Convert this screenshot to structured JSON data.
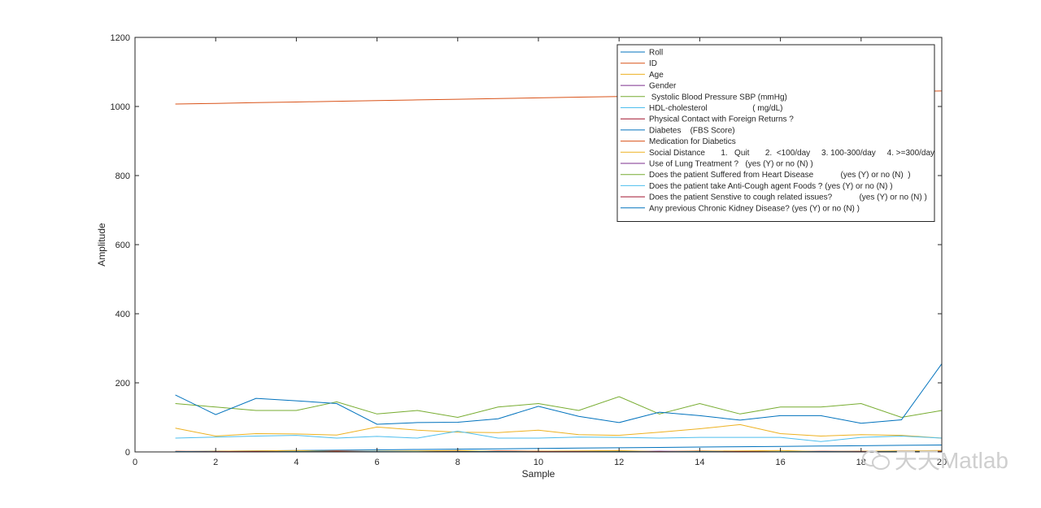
{
  "chart_data": {
    "type": "line",
    "title": "",
    "xlabel": "Sample",
    "ylabel": "Amplitude",
    "xlim": [
      0,
      20
    ],
    "ylim": [
      0,
      1200
    ],
    "xticks": [
      0,
      2,
      4,
      6,
      8,
      10,
      12,
      14,
      16,
      18,
      20
    ],
    "yticks": [
      0,
      200,
      400,
      600,
      800,
      1000,
      1200
    ],
    "grid": false,
    "legend_position": "top-right",
    "x": [
      1,
      2,
      3,
      4,
      5,
      6,
      7,
      8,
      9,
      10,
      11,
      12,
      13,
      14,
      15,
      16,
      17,
      18,
      19,
      20
    ],
    "series": [
      {
        "name": "Roll",
        "color": "#0072BD",
        "values": [
          1,
          2,
          3,
          4,
          5,
          6,
          7,
          8,
          9,
          10,
          11,
          12,
          13,
          14,
          15,
          16,
          17,
          18,
          19,
          20
        ]
      },
      {
        "name": "ID",
        "color": "#D95319",
        "values": [
          1007,
          1009,
          1011,
          1013,
          1015,
          1017,
          1019,
          1021,
          1023,
          1025,
          1027,
          1029,
          1031,
          1033,
          1035,
          1037,
          1039,
          1041,
          1043,
          1045
        ]
      },
      {
        "name": "Age",
        "color": "#EDB120",
        "values": [
          69,
          46,
          53,
          52,
          49,
          72,
          63,
          57,
          56,
          63,
          50,
          48,
          57,
          67,
          79,
          53,
          46,
          50,
          48,
          40
        ]
      },
      {
        "name": "Gender",
        "color": "#7E2F8E",
        "values": [
          1,
          1,
          2,
          1,
          2,
          1,
          1,
          2,
          1,
          2,
          1,
          1,
          2,
          1,
          2,
          1,
          1,
          2,
          1,
          2
        ]
      },
      {
        "name": " Systolic Blood Pressure SBP (mmHg)",
        "color": "#77AC30",
        "values": [
          140,
          130,
          120,
          120,
          145,
          110,
          120,
          100,
          130,
          140,
          120,
          160,
          110,
          140,
          110,
          130,
          130,
          140,
          100,
          120
        ]
      },
      {
        "name": "HDL-cholesterol                    ( mg/dL)",
        "color": "#4DBEEE",
        "values": [
          40,
          43,
          46,
          48,
          40,
          45,
          40,
          60,
          40,
          40,
          43,
          42,
          40,
          42,
          42,
          42,
          30,
          42,
          46,
          40
        ]
      },
      {
        "name": "Physical Contact with Foreign Returns ?",
        "color": "#A2142F",
        "values": [
          1,
          1,
          0,
          1,
          0,
          1,
          0,
          0,
          1,
          0,
          1,
          0,
          0,
          1,
          0,
          1,
          0,
          0,
          1,
          0
        ]
      },
      {
        "name": "Diabetes    (FBS Score)",
        "color": "#0072BD",
        "values": [
          165,
          108,
          155,
          148,
          140,
          80,
          85,
          86,
          96,
          132,
          103,
          85,
          115,
          105,
          92,
          105,
          105,
          83,
          93,
          255
        ]
      },
      {
        "name": "Medication for Diabetics",
        "color": "#D95319",
        "values": [
          2,
          1,
          2,
          1,
          3,
          1,
          2,
          1,
          3,
          2,
          1,
          2,
          1,
          3,
          2,
          1,
          2,
          1,
          3,
          2
        ]
      },
      {
        "name": "Social Distance       1.   Quit       2.  <100/day     3. 100-300/day     4. >=300/day",
        "color": "#EDB120",
        "values": [
          1,
          2,
          3,
          4,
          1,
          2,
          3,
          4,
          1,
          2,
          3,
          4,
          1,
          2,
          3,
          4,
          1,
          2,
          3,
          4
        ]
      },
      {
        "name": "Use of Lung Treatment ?   (yes (Y) or no (N) )",
        "color": "#7E2F8E",
        "values": [
          1,
          0,
          1,
          0,
          0,
          1,
          0,
          1,
          1,
          0,
          0,
          1,
          0,
          1,
          0,
          0,
          1,
          0,
          1,
          0
        ]
      },
      {
        "name": "Does the patient Suffered from Heart Disease            (yes (Y) or no (N)  )",
        "color": "#77AC30",
        "values": [
          0,
          1,
          0,
          1,
          1,
          0,
          1,
          0,
          1,
          0,
          1,
          1,
          0,
          1,
          0,
          1,
          0,
          1,
          1,
          0
        ]
      },
      {
        "name": "Does the patient take Anti-Cough agent Foods ? (yes (Y) or no (N) )",
        "color": "#4DBEEE",
        "values": [
          1,
          1,
          0,
          1,
          0,
          1,
          1,
          0,
          1,
          0,
          1,
          0,
          1,
          1,
          0,
          1,
          0,
          1,
          0,
          1
        ]
      },
      {
        "name": "Does the patient Senstive to cough related issues?            (yes (Y) or no (N) )",
        "color": "#A2142F",
        "values": [
          0,
          1,
          1,
          0,
          1,
          0,
          0,
          1,
          0,
          1,
          1,
          0,
          1,
          0,
          1,
          0,
          0,
          1,
          0,
          1
        ]
      },
      {
        "name": "Any previous Chronic Kidney Disease? (yes (Y) or no (N) )",
        "color": "#0072BD",
        "values": [
          1,
          0,
          0,
          1,
          0,
          1,
          0,
          1,
          1,
          0,
          0,
          1,
          0,
          1,
          0,
          0,
          1,
          0,
          1,
          0
        ]
      }
    ]
  },
  "watermark": {
    "text": "天天Matlab",
    "icon": "wechat-icon"
  }
}
